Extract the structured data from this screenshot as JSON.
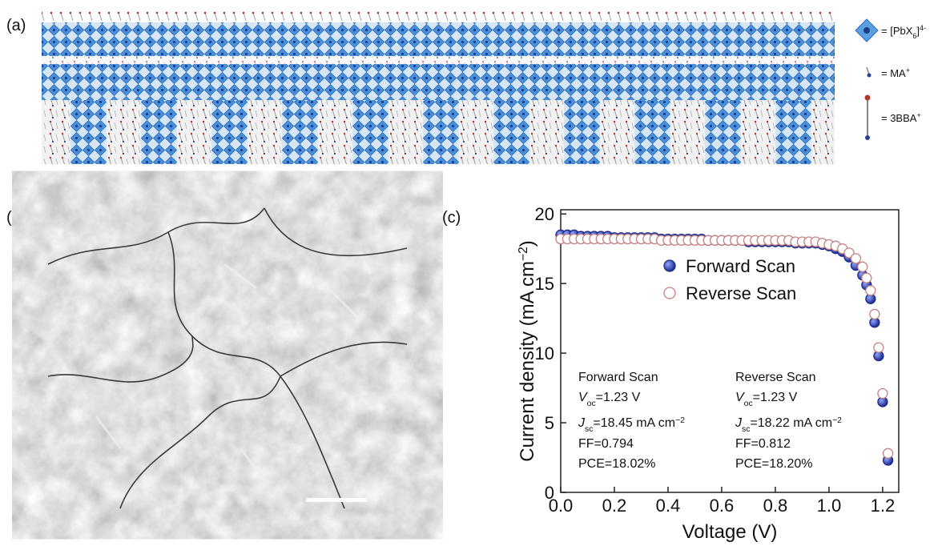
{
  "panels": {
    "a": "(a)",
    "b": "(b)",
    "c": "(c)"
  },
  "structure_legend": {
    "pbx6": {
      "text": "= [PbX",
      "sub": "6",
      "end": "]",
      "sup": "4-"
    },
    "ma": {
      "text": "= MA",
      "sup": "+"
    },
    "bba": {
      "text": "= 3BBA",
      "sup": "+"
    }
  },
  "chart_data": {
    "type": "scatter",
    "xlabel": "Voltage (V)",
    "ylabel": {
      "text": "Current density (mA cm",
      "sup": "−2",
      "end": ")"
    },
    "x": [
      0,
      0.025,
      0.05,
      0.075,
      0.1,
      0.125,
      0.15,
      0.175,
      0.2,
      0.225,
      0.25,
      0.275,
      0.3,
      0.325,
      0.35,
      0.375,
      0.4,
      0.425,
      0.45,
      0.475,
      0.5,
      0.525,
      0.55,
      0.575,
      0.6,
      0.625,
      0.65,
      0.675,
      0.7,
      0.725,
      0.75,
      0.775,
      0.8,
      0.825,
      0.85,
      0.875,
      0.9,
      0.925,
      0.95,
      0.975,
      1.0,
      1.025,
      1.05,
      1.075,
      1.1,
      1.125,
      1.14,
      1.155,
      1.17,
      1.185,
      1.2,
      1.22
    ],
    "series": [
      {
        "name": "Forward Scan",
        "color": "#1c2b8c",
        "filled": true,
        "values": [
          18.5,
          18.5,
          18.5,
          18.4,
          18.4,
          18.4,
          18.4,
          18.4,
          18.3,
          18.3,
          18.3,
          18.3,
          18.3,
          18.3,
          18.3,
          18.2,
          18.2,
          18.2,
          18.2,
          18.2,
          18.2,
          18.2,
          18.1,
          18.1,
          18.1,
          18.1,
          18.1,
          18.1,
          18.0,
          18.0,
          18.0,
          18.0,
          18.0,
          18.0,
          18.0,
          17.9,
          17.9,
          17.9,
          17.9,
          17.8,
          17.7,
          17.5,
          17.3,
          16.9,
          16.3,
          15.6,
          14.9,
          13.9,
          12.2,
          9.8,
          6.5,
          2.3
        ]
      },
      {
        "name": "Reverse Scan",
        "color": "#c77f7f",
        "filled": false,
        "values": [
          18.2,
          18.2,
          18.2,
          18.2,
          18.2,
          18.2,
          18.2,
          18.2,
          18.2,
          18.2,
          18.2,
          18.2,
          18.2,
          18.2,
          18.2,
          18.1,
          18.1,
          18.1,
          18.1,
          18.1,
          18.1,
          18.1,
          18.1,
          18.1,
          18.1,
          18.1,
          18.1,
          18.1,
          18.1,
          18.1,
          18.1,
          18.1,
          18.1,
          18.1,
          18.1,
          18.0,
          18.0,
          18.0,
          18.0,
          17.9,
          17.8,
          17.7,
          17.5,
          17.2,
          16.8,
          16.2,
          15.4,
          14.5,
          12.8,
          10.4,
          7.1,
          2.8
        ]
      }
    ],
    "xlim": [
      0,
      1.26
    ],
    "ylim": [
      0,
      20.3
    ],
    "xticks": [
      {
        "value": 0,
        "label": "0.0"
      },
      {
        "value": 0.2,
        "label": "0.2"
      },
      {
        "value": 0.4,
        "label": "0.4"
      },
      {
        "value": 0.6,
        "label": "0.6"
      },
      {
        "value": 0.8,
        "label": "0.8"
      },
      {
        "value": 1.0,
        "label": "1.0"
      },
      {
        "value": 1.2,
        "label": "1.2"
      }
    ],
    "yticks": [
      0,
      5,
      10,
      15,
      20
    ],
    "legend": "upper right",
    "annotations": [
      {
        "title": "Forward Scan",
        "voc": {
          "symbol": "V",
          "sub": "oc",
          "rest": "=1.23 V"
        },
        "jsc": {
          "symbol": "J",
          "sub": "sc",
          "rest": "=18.45 mA cm",
          "sup": "−2"
        },
        "ff": "FF=0.794",
        "pce": "PCE=18.02%"
      },
      {
        "title": "Reverse Scan",
        "voc": {
          "symbol": "V",
          "sub": "oc",
          "rest": "=1.23 V"
        },
        "jsc": {
          "symbol": "J",
          "sub": "sc",
          "rest": "=18.22 mA cm",
          "sup": "−2"
        },
        "ff": "FF=0.812",
        "pce": "PCE=18.20%"
      }
    ]
  }
}
